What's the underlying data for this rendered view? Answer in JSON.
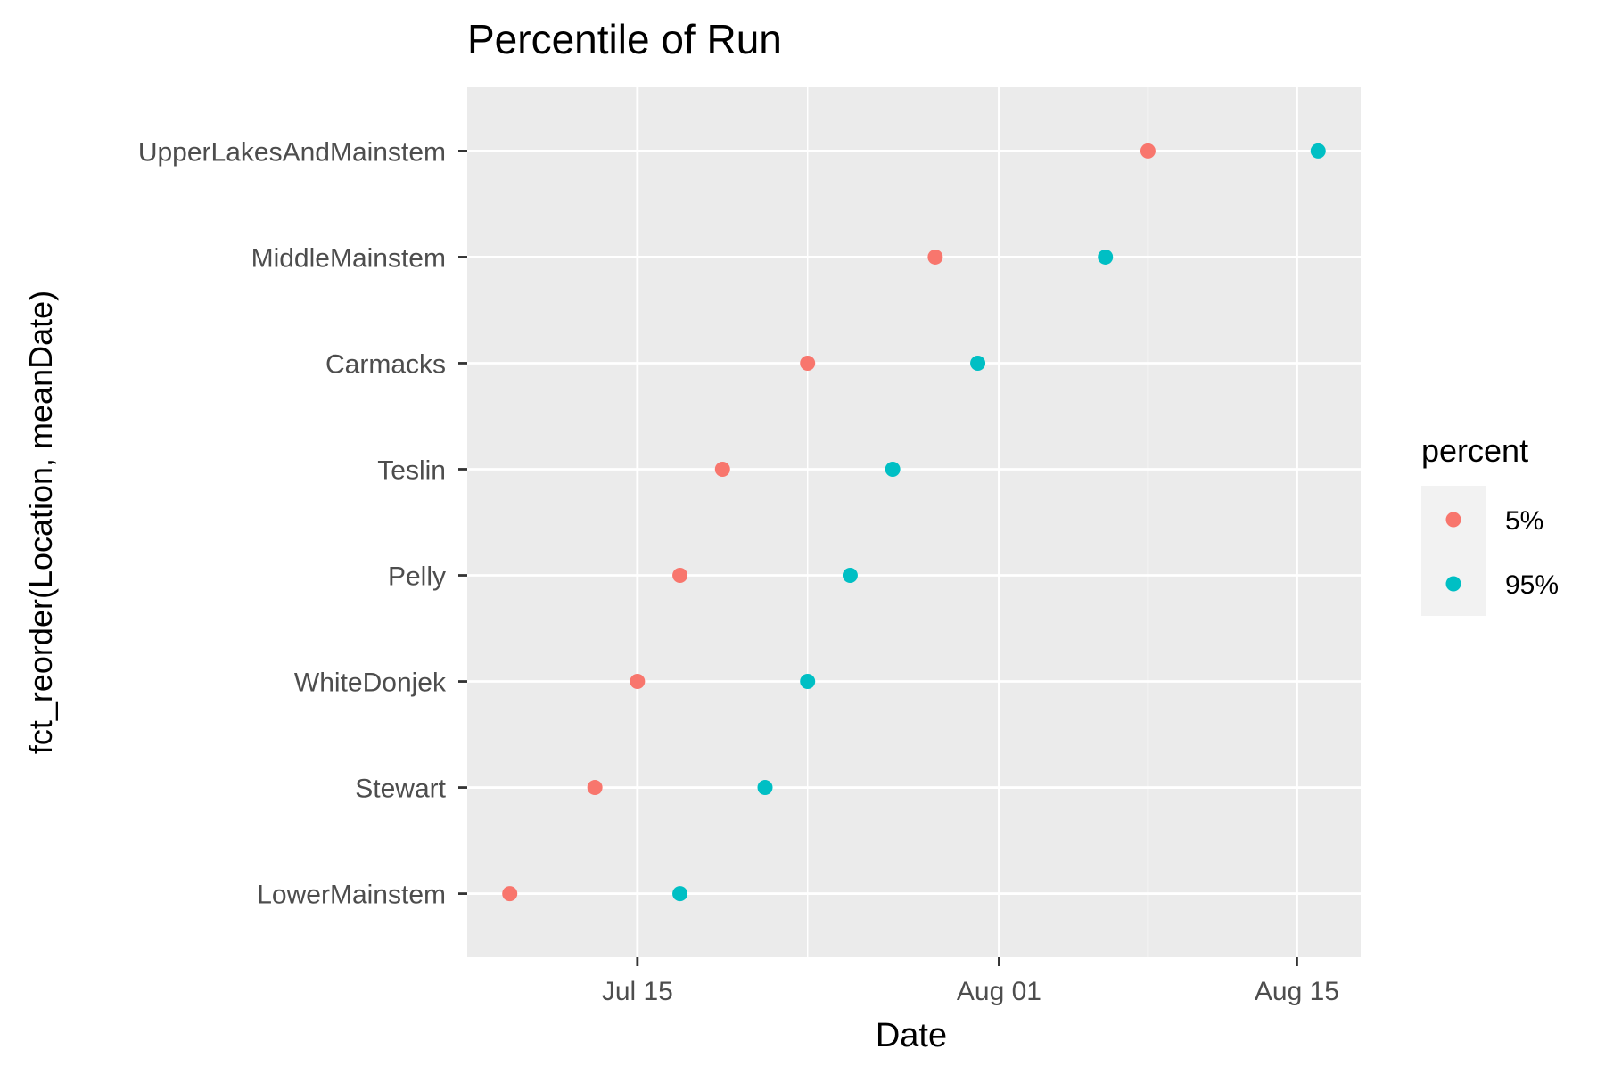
{
  "chart_data": {
    "type": "scatter",
    "title": "Percentile of Run",
    "xlabel": "Date",
    "ylabel": "fct_reorder(Location, meanDate)",
    "x_axis_type": "date",
    "xlim": [
      "2023-07-07",
      "2023-08-18"
    ],
    "x_ticks": [
      {
        "label": "Jul 15",
        "date": "2023-07-15"
      },
      {
        "label": "Aug 01",
        "date": "2023-08-01"
      },
      {
        "label": "Aug 15",
        "date": "2023-08-15"
      }
    ],
    "x_minor_gridlines": [
      "2023-07-23",
      "2023-08-08"
    ],
    "categories": [
      "LowerMainstem",
      "Stewart",
      "WhiteDonjek",
      "Pelly",
      "Teslin",
      "Carmacks",
      "MiddleMainstem",
      "UpperLakesAndMainstem"
    ],
    "series": [
      {
        "name": "5%",
        "color": "#F8766D",
        "points": [
          {
            "y": "LowerMainstem",
            "x": "2023-07-09"
          },
          {
            "y": "Stewart",
            "x": "2023-07-13"
          },
          {
            "y": "WhiteDonjek",
            "x": "2023-07-15"
          },
          {
            "y": "Pelly",
            "x": "2023-07-17"
          },
          {
            "y": "Teslin",
            "x": "2023-07-19"
          },
          {
            "y": "Carmacks",
            "x": "2023-07-23"
          },
          {
            "y": "MiddleMainstem",
            "x": "2023-07-29"
          },
          {
            "y": "UpperLakesAndMainstem",
            "x": "2023-08-08"
          }
        ]
      },
      {
        "name": "95%",
        "color": "#00BFC4",
        "points": [
          {
            "y": "LowerMainstem",
            "x": "2023-07-17"
          },
          {
            "y": "Stewart",
            "x": "2023-07-21"
          },
          {
            "y": "WhiteDonjek",
            "x": "2023-07-23"
          },
          {
            "y": "Pelly",
            "x": "2023-07-25"
          },
          {
            "y": "Teslin",
            "x": "2023-07-27"
          },
          {
            "y": "Carmacks",
            "x": "2023-07-31"
          },
          {
            "y": "MiddleMainstem",
            "x": "2023-08-06"
          },
          {
            "y": "UpperLakesAndMainstem",
            "x": "2023-08-16"
          }
        ]
      }
    ],
    "legend": {
      "title": "percent",
      "position": "right",
      "entries": [
        "5%",
        "95%"
      ]
    },
    "grid": true,
    "panel_background": "#EBEBEB",
    "gridline_color": "#FFFFFF"
  }
}
